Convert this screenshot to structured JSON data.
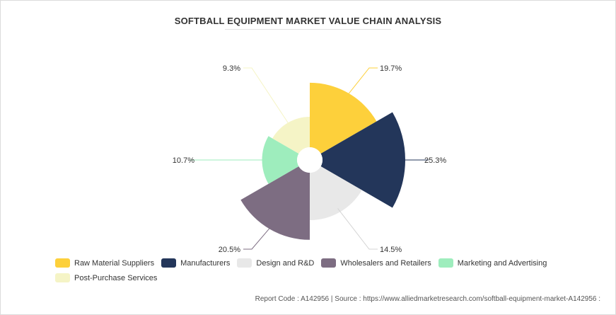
{
  "title": "SOFTBALL EQUIPMENT MARKET VALUE CHAIN ANALYSIS",
  "chart_data": {
    "type": "pie",
    "subtype": "nightingale-rose",
    "title": "SOFTBALL EQUIPMENT MARKET VALUE CHAIN ANALYSIS",
    "categories": [
      "Raw Material Suppliers",
      "Manufacturers",
      "Design and R&D",
      "Wholesalers and Retailers",
      "Marketing and Advertising",
      "Post-Purchase Services"
    ],
    "values": [
      19.7,
      25.3,
      14.5,
      20.5,
      10.7,
      9.3
    ],
    "data_labels": [
      "19.7%",
      "25.3%",
      "14.5%",
      "20.5%",
      "10.7%",
      "9.3%"
    ],
    "colors": [
      "#fdd03b",
      "#23365a",
      "#e8e8e8",
      "#7d6d82",
      "#9eedbd",
      "#f5f4c6"
    ],
    "legend_position": "bottom"
  },
  "legend": {
    "items": [
      {
        "label": "Raw Material Suppliers",
        "color": "#fdd03b"
      },
      {
        "label": "Manufacturers",
        "color": "#23365a"
      },
      {
        "label": "Design and R&D",
        "color": "#e8e8e8"
      },
      {
        "label": "Wholesalers and Retailers",
        "color": "#7d6d82"
      },
      {
        "label": "Marketing and Advertising",
        "color": "#9eedbd"
      },
      {
        "label": "Post-Purchase Services",
        "color": "#f5f4c6"
      }
    ]
  },
  "source_text": "Report Code : A142956  |  Source : https://www.alliedmarketresearch.com/softball-equipment-market-A142956 :"
}
